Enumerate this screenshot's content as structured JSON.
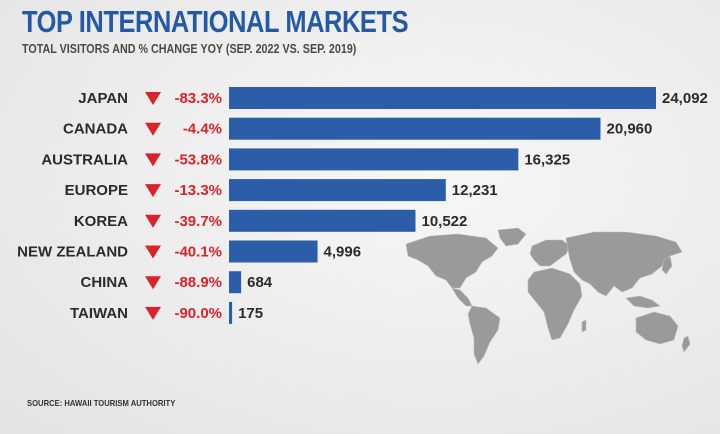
{
  "header": {
    "title": "TOP INTERNATIONAL MARKETS",
    "subtitle": "TOTAL VISITORS AND % CHANGE YOY (SEP. 2022 VS. SEP. 2019)"
  },
  "footer": {
    "source": "SOURCE: HAWAII TOURISM AUTHORITY"
  },
  "colors": {
    "bar": "#2b5da8",
    "down": "#d9232a",
    "label": "#2b2b2b",
    "map": "#9a9a9a"
  },
  "chart_data": {
    "type": "bar",
    "orientation": "horizontal",
    "categories": [
      "JAPAN",
      "CANADA",
      "AUSTRALIA",
      "EUROPE",
      "KOREA",
      "NEW ZEALAND",
      "CHINA",
      "TAIWAN"
    ],
    "values": [
      24092,
      20960,
      16325,
      12231,
      10522,
      4996,
      684,
      175
    ],
    "value_labels": [
      "24,092",
      "20,960",
      "16,325",
      "12,231",
      "10,522",
      "4,996",
      "684",
      "175"
    ],
    "pct_change": [
      "-83.3%",
      "-4.4%",
      "-53.8%",
      "-13.3%",
      "-39.7%",
      "-40.1%",
      "-88.9%",
      "-90.0%"
    ],
    "change_direction": "down",
    "xlim": [
      0,
      24092
    ],
    "grid": false,
    "legend": "none"
  }
}
